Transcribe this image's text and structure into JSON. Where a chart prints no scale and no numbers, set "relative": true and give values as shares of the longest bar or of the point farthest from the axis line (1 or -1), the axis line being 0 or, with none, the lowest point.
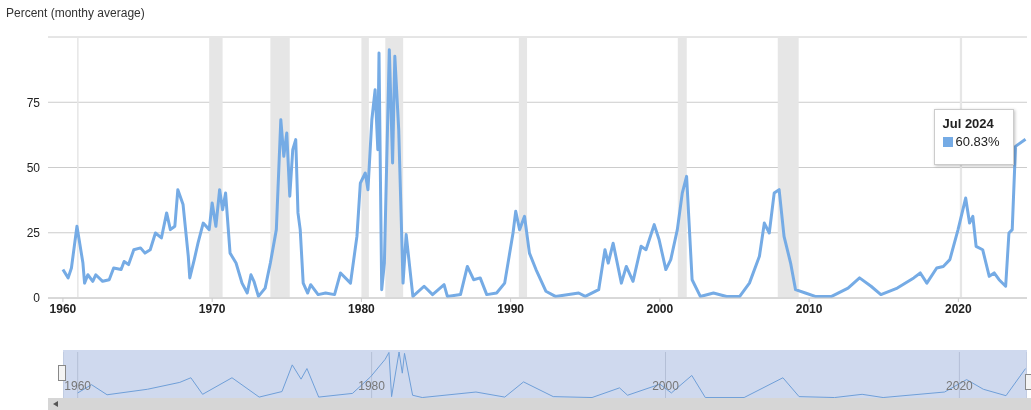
{
  "chart_data": [
    {
      "type": "line",
      "ylabel": "Percent (monthy average)",
      "x": [
        1960.0,
        1960.35,
        1960.57,
        1960.94,
        1961.34,
        1961.45,
        1961.67,
        1962.0,
        1962.2,
        1962.66,
        1963.1,
        1963.4,
        1963.9,
        1964.1,
        1964.4,
        1964.75,
        1965.2,
        1965.5,
        1965.85,
        1966.2,
        1966.6,
        1966.95,
        1967.2,
        1967.5,
        1967.7,
        1968.05,
        1968.4,
        1968.5,
        1968.8,
        1969.05,
        1969.4,
        1969.8,
        1970.0,
        1970.25,
        1970.5,
        1970.7,
        1970.9,
        1971.2,
        1971.6,
        1972.0,
        1972.35,
        1972.6,
        1972.8,
        1973.1,
        1973.55,
        1973.9,
        1974.3,
        1974.6,
        1974.8,
        1975.0,
        1975.2,
        1975.4,
        1975.6,
        1975.75,
        1975.9,
        1976.1,
        1976.4,
        1976.6,
        1977.1,
        1977.6,
        1978.2,
        1978.6,
        1979.27,
        1979.7,
        1979.93,
        1980.26,
        1980.44,
        1980.7,
        1980.92,
        1981.1,
        1981.18,
        1981.36,
        1981.54,
        1981.87,
        1982.09,
        1982.24,
        1982.5,
        1982.79,
        1983.0,
        1983.45,
        1984.2,
        1984.77,
        1985.54,
        1985.76,
        1986.64,
        1987.1,
        1987.52,
        1987.96,
        1988.4,
        1989.06,
        1989.6,
        1990.16,
        1990.34,
        1990.6,
        1990.93,
        1991.26,
        1991.7,
        1992.36,
        1993.0,
        1994.56,
        1995.0,
        1995.9,
        1996.32,
        1996.54,
        1996.87,
        1997.42,
        1997.75,
        1998.2,
        1998.74,
        1999.07,
        1999.62,
        1999.95,
        2000.4,
        2000.73,
        2001.17,
        2001.5,
        2001.79,
        2002.16,
        2002.71,
        2003.59,
        2004.47,
        2005.35,
        2006.0,
        2006.67,
        2007.0,
        2007.33,
        2007.66,
        2007.99,
        2008.32,
        2008.76,
        2009.09,
        2009.75,
        2010.41,
        2011.51,
        2012.61,
        2013.38,
        2014.15,
        2014.81,
        2015.91,
        2017.01,
        2017.45,
        2017.89,
        2018.55,
        2018.99,
        2019.43,
        2019.98,
        2020.49,
        2020.75,
        2020.97,
        2021.19,
        2021.63,
        2022.07,
        2022.4,
        2022.73,
        2023.17,
        2023.39,
        2023.61,
        2023.83,
        2024.5
      ],
      "series": [
        {
          "color": "#75abe5",
          "values": [
            10.9,
            7.7,
            11.5,
            27.5,
            13.4,
            5.7,
            8.9,
            6.4,
            8.9,
            6.4,
            7.0,
            11.5,
            10.9,
            14,
            12.8,
            18.5,
            19.2,
            17.2,
            18.5,
            24.9,
            23,
            32.6,
            26.2,
            27.5,
            41.5,
            35.8,
            16,
            7.7,
            14.7,
            21,
            28.7,
            26.2,
            36.4,
            27.5,
            41.5,
            33.8,
            40.2,
            17.2,
            13.4,
            5.7,
            1.9,
            8.9,
            6.4,
            0.6,
            3.8,
            13.4,
            26.2,
            68.3,
            54.3,
            63.2,
            39,
            56.8,
            60.7,
            32.6,
            26.2,
            5.7,
            1.9,
            5.1,
            1.3,
            1.9,
            1.3,
            9.6,
            5.7,
            23.6,
            44,
            47.9,
            41.5,
            68.3,
            79.8,
            56.8,
            93.9,
            3.2,
            13.4,
            95.1,
            51.7,
            92.6,
            64.5,
            5.7,
            24.3,
            0.6,
            4.5,
            1.3,
            5.1,
            0.6,
            1.3,
            12.1,
            7,
            7.7,
            1.3,
            1.9,
            5.7,
            24.9,
            33.2,
            26.2,
            31.3,
            17.2,
            10.9,
            2.6,
            0.6,
            1.9,
            0.6,
            3.2,
            18.5,
            13.4,
            21,
            5.7,
            12.1,
            6.4,
            19.8,
            18.5,
            28.1,
            22.3,
            10.9,
            14.7,
            26.2,
            40.2,
            46.6,
            7,
            0.6,
            1.9,
            0.6,
            0.6,
            5.7,
            16,
            28.7,
            24.9,
            40.2,
            41.5,
            23.6,
            13.4,
            3.2,
            1.9,
            0.6,
            0.6,
            3.8,
            7.7,
            4.5,
            1.3,
            3.8,
            7.7,
            9.6,
            5.7,
            11.5,
            12.1,
            14.7,
            26.2,
            38.3,
            28.7,
            31.3,
            19.8,
            18.5,
            8.3,
            9.6,
            7,
            4.5,
            24.9,
            26.2,
            58.1,
            60.83
          ]
        }
      ],
      "xlim": [
        1959,
        2024.6
      ],
      "xticks": [
        1960,
        1970,
        1980,
        1990,
        2000,
        2010,
        2020
      ],
      "ylim": [
        0,
        100
      ],
      "yticks": [
        0,
        25,
        50,
        75,
        {
          "value": 100,
          "label": null
        }
      ],
      "grid": "y",
      "bands": [
        {
          "axis": "x",
          "from": 1960.95,
          "to": 1961.05,
          "color": "#e6e6e6"
        },
        {
          "axis": "x",
          "from": 1969.8,
          "to": 1970.7,
          "color": "#e6e6e6"
        },
        {
          "axis": "x",
          "from": 1973.9,
          "to": 1975.2,
          "color": "#e6e6e6"
        },
        {
          "axis": "x",
          "from": 1980.0,
          "to": 1980.5,
          "color": "#e6e6e6"
        },
        {
          "axis": "x",
          "from": 1981.6,
          "to": 1982.8,
          "color": "#e6e6e6"
        },
        {
          "axis": "x",
          "from": 1990.55,
          "to": 1991.1,
          "color": "#e6e6e6"
        },
        {
          "axis": "x",
          "from": 2001.2,
          "to": 2001.8,
          "color": "#e6e6e6"
        },
        {
          "axis": "x",
          "from": 2007.9,
          "to": 2009.3,
          "color": "#e6e6e6"
        },
        {
          "axis": "x",
          "from": 2020.1,
          "to": 2020.25,
          "color": "#e6e6e6"
        }
      ],
      "annotations": [
        {
          "text": "Jul 2024",
          "x": 2024.5,
          "y": 60.83
        },
        "60.83%"
      ]
    },
    {
      "type": "line",
      "relative": true,
      "grid": "x",
      "x": [
        1960,
        1960.94,
        1962,
        1964.75,
        1966.95,
        1967.7,
        1968.5,
        1970.5,
        1972.35,
        1973.9,
        1974.6,
        1975.2,
        1975.6,
        1976.4,
        1978.7,
        1979.93,
        1980.92,
        1981.18,
        1981.36,
        1981.87,
        1982.09,
        1982.24,
        1982.79,
        1983.45,
        1987.1,
        1989.06,
        1990.34,
        1992.36,
        1995.0,
        1996.87,
        1997.42,
        1999.62,
        2000.4,
        2001.79,
        2002.71,
        2005.35,
        2007.99,
        2009.09,
        2011.51,
        2013.38,
        2014.81,
        2018.99,
        2020.49,
        2021.63,
        2023.17,
        2024.5
      ],
      "series": [
        {
          "color": "#6f9fd8",
          "values": [
            0.11,
            0.29,
            0.07,
            0.19,
            0.34,
            0.44,
            0.08,
            0.44,
            0.02,
            0.14,
            0.72,
            0.41,
            0.64,
            0.02,
            0.1,
            0.46,
            0.84,
            0.99,
            0.03,
            1,
            0.54,
            0.97,
            0.06,
            0.01,
            0.13,
            0.02,
            0.35,
            0.03,
            0.01,
            0.22,
            0.06,
            0.3,
            0.11,
            0.49,
            0.01,
            0.01,
            0.44,
            0.03,
            0.01,
            0.08,
            0.01,
            0.13,
            0.4,
            0.19,
            0.05,
            0.64
          ]
        }
      ],
      "xlim": [
        1959,
        2024.6
      ],
      "xticks": [
        1960,
        1980,
        2000,
        2020
      ]
    }
  ]
}
